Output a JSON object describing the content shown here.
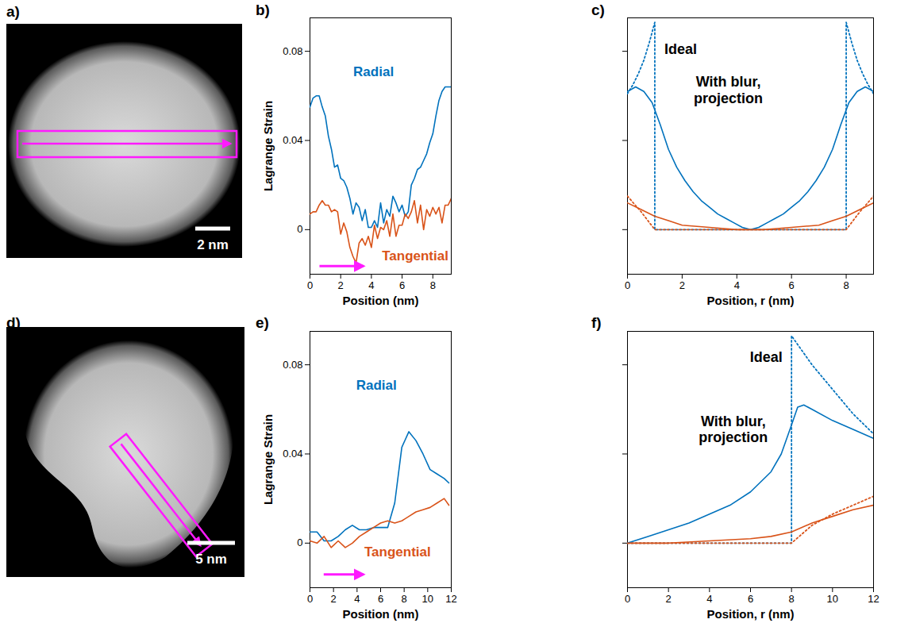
{
  "chart_data": [
    {
      "type": "image",
      "panel": "a)",
      "scale_bar": "2 nm"
    },
    {
      "type": "line",
      "panel": "b)",
      "xlabel": "Position (nm)",
      "ylabel": "Lagrange Strain",
      "xlim": [
        0,
        9.2
      ],
      "xticks": [
        0,
        2,
        4,
        6,
        8
      ],
      "ylim": [
        -0.02,
        0.095
      ],
      "yticks": [
        0,
        0.04,
        0.08
      ],
      "x": [
        0,
        0.2,
        0.4,
        0.6,
        0.8,
        1,
        1.2,
        1.4,
        1.6,
        1.8,
        2,
        2.2,
        2.4,
        2.6,
        2.8,
        3,
        3.2,
        3.4,
        3.6,
        3.8,
        4,
        4.2,
        4.4,
        4.6,
        4.8,
        5,
        5.2,
        5.4,
        5.6,
        5.8,
        6,
        6.2,
        6.4,
        6.6,
        6.8,
        7,
        7.2,
        7.4,
        7.6,
        7.8,
        8,
        8.2,
        8.4,
        8.6,
        8.8,
        9,
        9.2
      ],
      "series": [
        {
          "name": "Radial",
          "color": "#0072bd",
          "line_style": "solid",
          "values": [
            0.055,
            0.059,
            0.06,
            0.06,
            0.055,
            0.051,
            0.042,
            0.036,
            0.028,
            0.029,
            0.023,
            0.022,
            0.019,
            0.014,
            0.007,
            0.012,
            0.01,
            0.004,
            0.009,
            0.001,
            0.001,
            0.004,
            0.001,
            0.012,
            0.003,
            0.009,
            0.006,
            0.015,
            0.012,
            0.008,
            0.011,
            0.006,
            0.008,
            0.02,
            0.023,
            0.027,
            0.028,
            0.031,
            0.034,
            0.039,
            0.043,
            0.051,
            0.058,
            0.062,
            0.064,
            0.064,
            0.064
          ]
        },
        {
          "name": "Tangential",
          "color": "#d95319",
          "line_style": "solid",
          "values": [
            0.007,
            0.008,
            0.008,
            0.011,
            0.013,
            0.011,
            0.011,
            0.008,
            0.009,
            0.008,
            -0.002,
            0.003,
            -0.001,
            -0.008,
            -0.012,
            -0.015,
            -0.006,
            -0.004,
            -0.007,
            -0.003,
            -0.008,
            0.002,
            -0.004,
            0.001,
            0,
            0.004,
            -0.003,
            0.007,
            -0.003,
            0.002,
            0.002,
            0.007,
            0.005,
            0.008,
            0.013,
            0.003,
            0.011,
            0,
            0.009,
            0.006,
            0.01,
            0.007,
            0.01,
            0.003,
            0.011,
            0.011,
            0.014
          ]
        }
      ]
    },
    {
      "type": "line",
      "panel": "c)",
      "xlabel": "Position, r (nm)",
      "xlim": [
        0,
        9
      ],
      "xticks": [
        0,
        2,
        4,
        6,
        8
      ],
      "ylim": [
        -0.02,
        0.095
      ],
      "yticks": [
        0,
        0.04,
        0.08
      ],
      "tick_labels": "x",
      "annotations": [
        "Ideal",
        "With blur, projection"
      ],
      "series": [
        {
          "color": "#0072bd",
          "line_style": "dotted",
          "x": [
            0,
            0.2,
            0.4,
            0.6,
            0.8,
            1,
            1,
            8,
            8,
            8.2,
            8.4,
            8.6,
            8.8,
            9
          ],
          "values": [
            0.061,
            0.065,
            0.07,
            0.076,
            0.084,
            0.093,
            0,
            0,
            0.093,
            0.084,
            0.076,
            0.07,
            0.065,
            0.061
          ]
        },
        {
          "color": "#d95319",
          "line_style": "dotted",
          "x": [
            0,
            0.5,
            1,
            8,
            8.5,
            9
          ],
          "values": [
            0.015,
            0.008,
            0,
            0,
            0.008,
            0.015
          ]
        },
        {
          "color": "#0072bd",
          "line_style": "solid",
          "x": [
            0,
            0.3,
            0.6,
            0.9,
            1.2,
            1.5,
            1.8,
            2.1,
            2.4,
            2.7,
            3,
            3.3,
            3.6,
            3.9,
            4.2,
            4.5,
            4.8,
            5.1,
            5.4,
            5.7,
            6,
            6.3,
            6.6,
            6.9,
            7.2,
            7.5,
            7.8,
            8.1,
            8.4,
            8.7,
            9
          ],
          "values": [
            0.062,
            0.064,
            0.062,
            0.057,
            0.047,
            0.036,
            0.028,
            0.022,
            0.017,
            0.013,
            0.01,
            0.007,
            0.005,
            0.003,
            0.001,
            0,
            0.001,
            0.003,
            0.005,
            0.007,
            0.01,
            0.013,
            0.017,
            0.022,
            0.028,
            0.036,
            0.047,
            0.057,
            0.062,
            0.064,
            0.062
          ]
        },
        {
          "color": "#d95319",
          "line_style": "solid",
          "x": [
            0,
            0.5,
            1,
            1.5,
            2,
            3,
            4,
            4.5,
            5,
            6,
            7,
            7.5,
            8,
            8.5,
            9
          ],
          "values": [
            0.012,
            0.009,
            0.006,
            0.004,
            0.002,
            0.001,
            0,
            0,
            0,
            0.001,
            0.002,
            0.004,
            0.006,
            0.009,
            0.012
          ]
        }
      ]
    },
    {
      "type": "image",
      "panel": "d)",
      "scale_bar": "5 nm"
    },
    {
      "type": "line",
      "panel": "e)",
      "xlabel": "Position (nm)",
      "ylabel": "Lagrange Strain",
      "xlim": [
        0,
        12
      ],
      "xticks": [
        0,
        2,
        4,
        6,
        8,
        10,
        12
      ],
      "ylim": [
        -0.02,
        0.095
      ],
      "yticks": [
        0,
        0.04,
        0.08
      ],
      "x": [
        0,
        0.6,
        1.2,
        1.8,
        2.4,
        3,
        3.6,
        4.2,
        4.8,
        5.4,
        6,
        6.6,
        7.2,
        7.8,
        8.4,
        9,
        9.6,
        10.2,
        10.8,
        11.4,
        11.8
      ],
      "series": [
        {
          "name": "Radial",
          "color": "#0072bd",
          "line_style": "solid",
          "values": [
            0.005,
            0.005,
            0.001,
            0.001,
            0.003,
            0.006,
            0.008,
            0.006,
            0.006,
            0.007,
            0.007,
            0.007,
            0.018,
            0.043,
            0.05,
            0.046,
            0.04,
            0.033,
            0.031,
            0.029,
            0.027
          ]
        },
        {
          "name": "Tangential",
          "color": "#d95319",
          "line_style": "solid",
          "values": [
            0.001,
            0,
            0.003,
            -0.002,
            0.001,
            -0.002,
            0,
            0.003,
            0.005,
            0.007,
            0.009,
            0.01,
            0.009,
            0.01,
            0.012,
            0.014,
            0.015,
            0.016,
            0.018,
            0.02,
            0.017
          ]
        }
      ]
    },
    {
      "type": "line",
      "panel": "f)",
      "xlabel": "Position, r (nm)",
      "xlim": [
        0,
        12
      ],
      "xticks": [
        0,
        2,
        4,
        6,
        8,
        10,
        12
      ],
      "ylim": [
        -0.02,
        0.095
      ],
      "yticks": [
        0,
        0.04,
        0.08
      ],
      "tick_labels": "x",
      "annotations": [
        "Ideal",
        "With blur, projection"
      ],
      "series": [
        {
          "color": "#0072bd",
          "line_style": "dotted",
          "x": [
            0,
            8,
            8,
            9,
            10,
            11,
            12
          ],
          "values": [
            0,
            0,
            0.093,
            0.08,
            0.069,
            0.058,
            0.049
          ]
        },
        {
          "color": "#d95319",
          "line_style": "dotted",
          "x": [
            0,
            8,
            8.5,
            9,
            10,
            11,
            12
          ],
          "values": [
            0,
            0,
            0.004,
            0.008,
            0.013,
            0.017,
            0.021
          ]
        },
        {
          "color": "#0072bd",
          "line_style": "solid",
          "x": [
            0,
            1,
            2,
            3,
            4,
            5,
            6,
            7,
            7.5,
            8,
            8.3,
            8.6,
            9,
            10,
            11,
            12
          ],
          "values": [
            0,
            0.003,
            0.006,
            0.009,
            0.013,
            0.017,
            0.023,
            0.032,
            0.04,
            0.053,
            0.061,
            0.062,
            0.06,
            0.055,
            0.051,
            0.047
          ]
        },
        {
          "color": "#d95319",
          "line_style": "solid",
          "x": [
            0,
            2,
            4,
            6,
            7,
            8,
            9,
            10,
            11,
            12
          ],
          "values": [
            0,
            0,
            0.001,
            0.002,
            0.003,
            0.005,
            0.009,
            0.012,
            0.015,
            0.017
          ]
        }
      ]
    }
  ]
}
